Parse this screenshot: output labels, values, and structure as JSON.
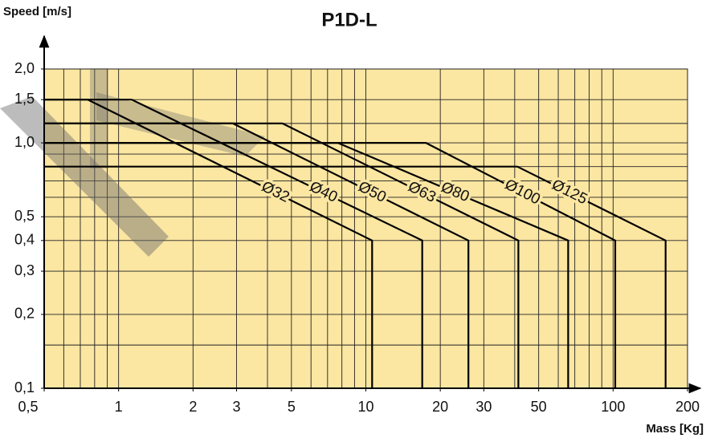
{
  "chart_data": {
    "type": "line",
    "title": "P1D-L",
    "ylabel": "Speed [m/s]",
    "xlabel": "Mass [Kg]",
    "xscale": "log",
    "yscale": "log",
    "xlim": [
      0.5,
      200
    ],
    "ylim": [
      0.1,
      2
    ],
    "xticks": [
      {
        "value": 0.5,
        "label": "0,5"
      },
      1,
      2,
      3,
      5,
      10,
      20,
      30,
      50,
      100,
      200
    ],
    "yticks": [
      {
        "value": 2,
        "label": "2,0"
      },
      {
        "value": 1.5,
        "label": "1,5"
      },
      {
        "value": 1,
        "label": "1,0"
      },
      {
        "value": 0.5,
        "label": "0,5"
      },
      {
        "value": 0.4,
        "label": "0,4"
      },
      {
        "value": 0.3,
        "label": "0,3"
      },
      {
        "value": 0.2,
        "label": "0,2"
      },
      {
        "value": 0.1,
        "label": "0,1"
      }
    ],
    "grid": true,
    "xgrid": [
      0.6,
      0.7,
      0.8,
      0.9,
      1,
      2,
      3,
      4,
      5,
      6,
      7,
      8,
      9,
      10,
      20,
      30,
      40,
      50,
      60,
      70,
      80,
      90,
      100
    ],
    "ygrid": [
      0.15,
      0.2,
      0.3,
      0.4,
      0.5,
      0.6,
      0.7,
      0.8,
      0.9,
      1,
      1.2,
      1.5
    ],
    "background": "#fbe6a2",
    "series": [
      {
        "name": "Ø32",
        "color": "#000000",
        "x": [
          0.5,
          0.75,
          10.6,
          10.6
        ],
        "y": [
          1.5,
          1.5,
          0.4,
          0.1
        ]
      },
      {
        "name": "Ø40",
        "color": "#000000",
        "x": [
          0.5,
          1.13,
          16.9,
          16.9
        ],
        "y": [
          1.5,
          1.5,
          0.4,
          0.1
        ]
      },
      {
        "name": "Ø50",
        "color": "#000000",
        "x": [
          0.5,
          2.9,
          26,
          26
        ],
        "y": [
          1.2,
          1.2,
          0.4,
          0.1
        ]
      },
      {
        "name": "Ø63",
        "color": "#000000",
        "x": [
          0.5,
          4.6,
          41.4,
          41.4
        ],
        "y": [
          1.2,
          1.2,
          0.4,
          0.1
        ]
      },
      {
        "name": "Ø80",
        "color": "#000000",
        "x": [
          0.5,
          7.7,
          65.8,
          65.8
        ],
        "y": [
          1,
          1,
          0.4,
          0.1
        ]
      },
      {
        "name": "Ø100",
        "color": "#000000",
        "x": [
          0.5,
          17.5,
          102,
          102
        ],
        "y": [
          1,
          1,
          0.4,
          0.1
        ]
      },
      {
        "name": "Ø125",
        "color": "#000000",
        "x": [
          0.5,
          41,
          163,
          163
        ],
        "y": [
          0.8,
          0.8,
          0.4,
          0.1
        ]
      }
    ]
  }
}
